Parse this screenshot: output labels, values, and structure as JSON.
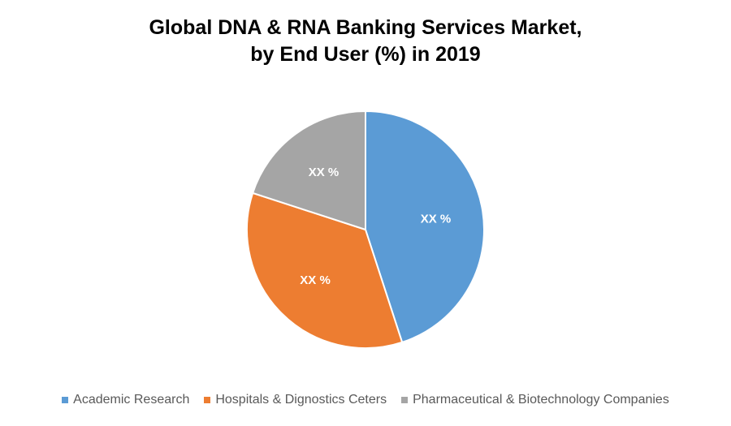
{
  "chart_data": {
    "type": "pie",
    "title": [
      "Global DNA & RNA Banking Services Market,",
      "by End User (%) in 2019"
    ],
    "categories": [
      "Academic Research",
      "Hospitals & Dignostics Ceters",
      "Pharmaceutical & Biotechnology Companies"
    ],
    "values": [
      45,
      35,
      20
    ],
    "data_labels": [
      "XX %",
      "XX %",
      "XX %"
    ],
    "colors": [
      "#5B9BD5",
      "#ED7D31",
      "#A5A5A5"
    ],
    "start_angle": "12 o'clock, clockwise",
    "legend_position": "bottom"
  }
}
